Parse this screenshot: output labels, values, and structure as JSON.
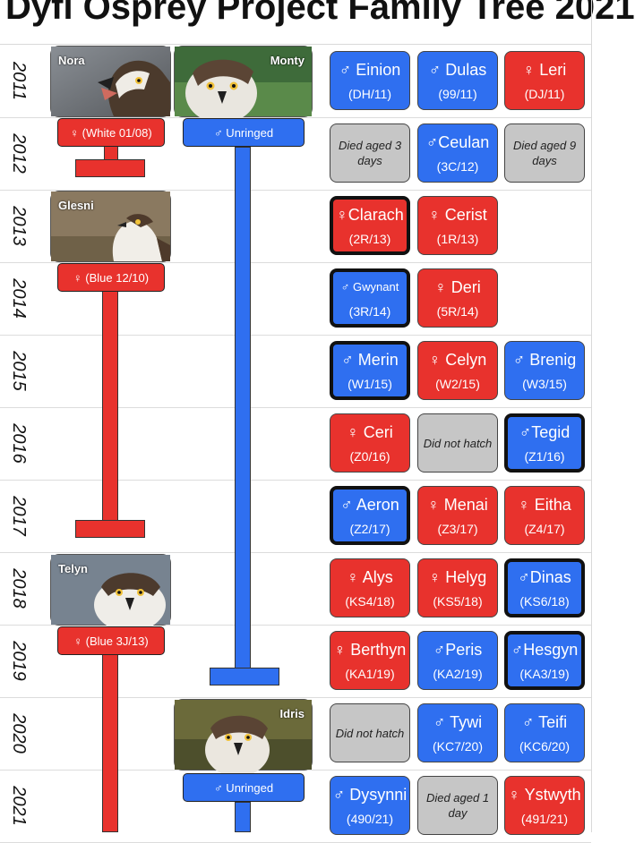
{
  "title": "Dyfi Osprey Project Family Tree 2021",
  "colors": {
    "female": "#e8322d",
    "male": "#2f6ff0",
    "unhatched": "#c6c6c6"
  },
  "years": [
    "2011",
    "2012",
    "2013",
    "2014",
    "2015",
    "2016",
    "2017",
    "2018",
    "2019",
    "2020",
    "2021"
  ],
  "parents": {
    "nora": {
      "name": "Nora",
      "tag": "♀ (White 01/08)"
    },
    "monty": {
      "name": "Monty",
      "tag": "♂ Unringed"
    },
    "glesni": {
      "name": "Glesni",
      "tag": "♀ (Blue 12/10)"
    },
    "telyn": {
      "name": "Telyn",
      "tag": "♀ (Blue 3J/13)"
    },
    "idris": {
      "name": "Idris",
      "tag": "♂ Unringed"
    }
  },
  "chicks": [
    [
      {
        "name": "♂ Einion",
        "ring": "(DH/11)",
        "sex": "male"
      },
      {
        "name": "♂ Dulas",
        "ring": "(99/11)",
        "sex": "male"
      },
      {
        "name": "♀ Leri",
        "ring": "(DJ/11)",
        "sex": "female"
      }
    ],
    [
      {
        "note": "Died aged 3 days"
      },
      {
        "name": "♂Ceulan",
        "ring": "(3C/12)",
        "sex": "male"
      },
      {
        "note": "Died aged 9 days"
      }
    ],
    [
      {
        "name": "♀Clarach",
        "ring": "(2R/13)",
        "sex": "female",
        "thick": true
      },
      {
        "name": "♀ Cerist",
        "ring": "(1R/13)",
        "sex": "female"
      }
    ],
    [
      {
        "name": "♂ Gwynant",
        "ring": "(3R/14)",
        "sex": "male",
        "thick": true,
        "small": true
      },
      {
        "name": "♀ Deri",
        "ring": "(5R/14)",
        "sex": "female"
      }
    ],
    [
      {
        "name": "♂ Merin",
        "ring": "(W1/15)",
        "sex": "male",
        "thick": true
      },
      {
        "name": "♀ Celyn",
        "ring": "(W2/15)",
        "sex": "female"
      },
      {
        "name": "♂ Brenig",
        "ring": "(W3/15)",
        "sex": "male"
      }
    ],
    [
      {
        "name": "♀ Ceri",
        "ring": "(Z0/16)",
        "sex": "female"
      },
      {
        "note": "Did not hatch"
      },
      {
        "name": "♂Tegid",
        "ring": "(Z1/16)",
        "sex": "male",
        "thick": true
      }
    ],
    [
      {
        "name": "♂ Aeron",
        "ring": "(Z2/17)",
        "sex": "male",
        "thick": true
      },
      {
        "name": "♀ Menai",
        "ring": "(Z3/17)",
        "sex": "female"
      },
      {
        "name": "♀ Eitha",
        "ring": "(Z4/17)",
        "sex": "female"
      }
    ],
    [
      {
        "name": "♀ Alys",
        "ring": "(KS4/18)",
        "sex": "female"
      },
      {
        "name": "♀ Helyg",
        "ring": "(KS5/18)",
        "sex": "female"
      },
      {
        "name": "♂Dinas",
        "ring": "(KS6/18)",
        "sex": "male",
        "thick": true
      }
    ],
    [
      {
        "name": "♀ Berthyn",
        "ring": "(KA1/19)",
        "sex": "female"
      },
      {
        "name": "♂Peris",
        "ring": "(KA2/19)",
        "sex": "male"
      },
      {
        "name": "♂Hesgyn",
        "ring": "(KA3/19)",
        "sex": "male",
        "thick": true
      }
    ],
    [
      {
        "note": "Did not hatch"
      },
      {
        "name": "♂ Tywi",
        "ring": "(KC7/20)",
        "sex": "male"
      },
      {
        "name": "♂ Teifi",
        "ring": "(KC6/20)",
        "sex": "male"
      }
    ],
    [
      {
        "name": "♂ Dysynni",
        "ring": "(490/21)",
        "sex": "male"
      },
      {
        "note": "Died aged 1 day"
      },
      {
        "name": "♀ Ystwyth",
        "ring": "(491/21)",
        "sex": "female"
      }
    ]
  ]
}
